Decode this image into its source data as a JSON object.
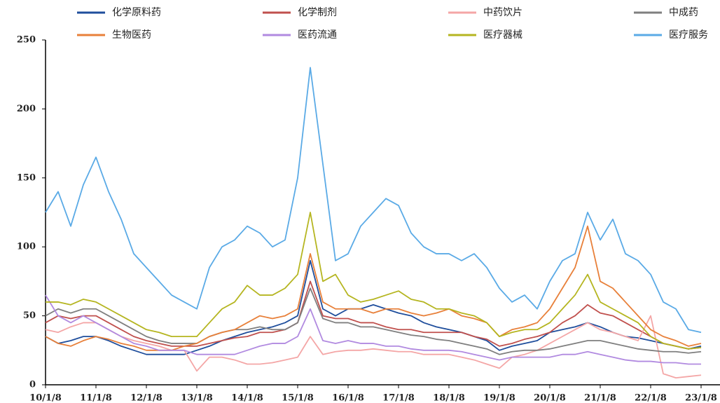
{
  "chart_data": {
    "type": "line",
    "categories": [
      "10/1/8",
      null,
      null,
      null,
      "11/1/8",
      null,
      null,
      null,
      "12/1/8",
      null,
      null,
      null,
      "13/1/8",
      null,
      null,
      null,
      "14/1/8",
      null,
      null,
      null,
      "15/1/8",
      null,
      null,
      null,
      "16/1/8",
      null,
      null,
      null,
      "17/1/8",
      null,
      null,
      null,
      "18/1/8",
      null,
      null,
      null,
      "19/1/8",
      null,
      null,
      null,
      "20/1/8",
      null,
      null,
      null,
      "21/1/8",
      null,
      null,
      null,
      "22/1/8",
      null,
      null,
      null,
      "23/1/8"
    ],
    "ylim": [
      0,
      250
    ],
    "yticks": [
      0,
      50,
      100,
      150,
      200,
      250
    ],
    "grid": false,
    "series": [
      {
        "name": "化学原料药",
        "color": "#1f4e9c",
        "values": [
          35,
          30,
          32,
          35,
          35,
          32,
          28,
          25,
          22,
          22,
          22,
          22,
          25,
          28,
          32,
          35,
          38,
          40,
          42,
          45,
          50,
          90,
          55,
          50,
          55,
          55,
          58,
          55,
          52,
          50,
          45,
          42,
          40,
          38,
          35,
          32,
          25,
          28,
          30,
          32,
          38,
          40,
          42,
          45,
          42,
          38,
          35,
          34,
          32,
          30,
          28,
          26,
          28
        ]
      },
      {
        "name": "化学制剂",
        "color": "#c0504d",
        "values": [
          45,
          50,
          48,
          50,
          50,
          45,
          40,
          35,
          32,
          30,
          28,
          28,
          28,
          30,
          32,
          34,
          35,
          38,
          38,
          40,
          45,
          75,
          50,
          48,
          48,
          45,
          45,
          42,
          40,
          40,
          38,
          38,
          38,
          38,
          35,
          33,
          28,
          30,
          33,
          35,
          38,
          45,
          50,
          58,
          52,
          50,
          45,
          40,
          35,
          30,
          28,
          26,
          27
        ]
      },
      {
        "name": "中药饮片",
        "color": "#f4a6a6",
        "values": [
          40,
          38,
          42,
          45,
          45,
          40,
          35,
          32,
          30,
          28,
          25,
          25,
          10,
          20,
          20,
          18,
          15,
          15,
          16,
          18,
          20,
          35,
          22,
          24,
          25,
          25,
          26,
          25,
          24,
          24,
          22,
          22,
          22,
          20,
          18,
          15,
          12,
          20,
          22,
          25,
          30,
          35,
          40,
          45,
          40,
          38,
          35,
          32,
          50,
          8,
          5,
          6,
          7
        ]
      },
      {
        "name": "中成药",
        "color": "#7f7f7f",
        "values": [
          50,
          55,
          52,
          55,
          55,
          50,
          45,
          40,
          35,
          32,
          30,
          30,
          30,
          35,
          38,
          40,
          40,
          42,
          40,
          40,
          45,
          70,
          48,
          45,
          45,
          42,
          42,
          40,
          38,
          36,
          35,
          33,
          32,
          30,
          28,
          26,
          22,
          24,
          25,
          25,
          26,
          28,
          30,
          32,
          32,
          30,
          28,
          26,
          25,
          24,
          24,
          23,
          24
        ]
      },
      {
        "name": "生物医药",
        "color": "#e8803a",
        "values": [
          35,
          30,
          28,
          32,
          35,
          33,
          30,
          28,
          25,
          25,
          25,
          28,
          30,
          35,
          38,
          40,
          45,
          50,
          48,
          50,
          55,
          95,
          60,
          55,
          55,
          55,
          52,
          55,
          55,
          52,
          50,
          52,
          55,
          50,
          48,
          45,
          35,
          40,
          42,
          45,
          55,
          70,
          85,
          115,
          75,
          70,
          60,
          50,
          40,
          35,
          32,
          28,
          30
        ]
      },
      {
        "name": "医药流通",
        "color": "#b18ae0",
        "values": [
          65,
          50,
          45,
          50,
          45,
          40,
          35,
          30,
          28,
          25,
          25,
          25,
          22,
          22,
          22,
          22,
          25,
          28,
          30,
          30,
          35,
          55,
          32,
          30,
          32,
          30,
          30,
          28,
          28,
          26,
          25,
          25,
          25,
          24,
          22,
          20,
          18,
          20,
          20,
          20,
          20,
          22,
          22,
          24,
          22,
          20,
          18,
          17,
          17,
          16,
          16,
          15,
          15
        ]
      },
      {
        "name": "医疗器械",
        "color": "#b5b520",
        "values": [
          60,
          60,
          58,
          62,
          60,
          55,
          50,
          45,
          40,
          38,
          35,
          35,
          35,
          45,
          55,
          60,
          72,
          65,
          65,
          70,
          80,
          125,
          75,
          80,
          65,
          60,
          62,
          65,
          68,
          62,
          60,
          55,
          55,
          52,
          50,
          45,
          35,
          38,
          40,
          40,
          45,
          55,
          65,
          80,
          60,
          55,
          50,
          45,
          35,
          30,
          28,
          26,
          27
        ]
      },
      {
        "name": "医疗服务",
        "color": "#5aaae6",
        "values": [
          125,
          140,
          115,
          145,
          165,
          140,
          120,
          95,
          85,
          75,
          65,
          60,
          55,
          85,
          100,
          105,
          115,
          110,
          100,
          105,
          150,
          230,
          160,
          90,
          95,
          115,
          125,
          135,
          130,
          110,
          100,
          95,
          95,
          90,
          95,
          85,
          70,
          60,
          65,
          55,
          75,
          90,
          95,
          125,
          105,
          120,
          95,
          90,
          80,
          60,
          55,
          40,
          38
        ]
      }
    ]
  }
}
